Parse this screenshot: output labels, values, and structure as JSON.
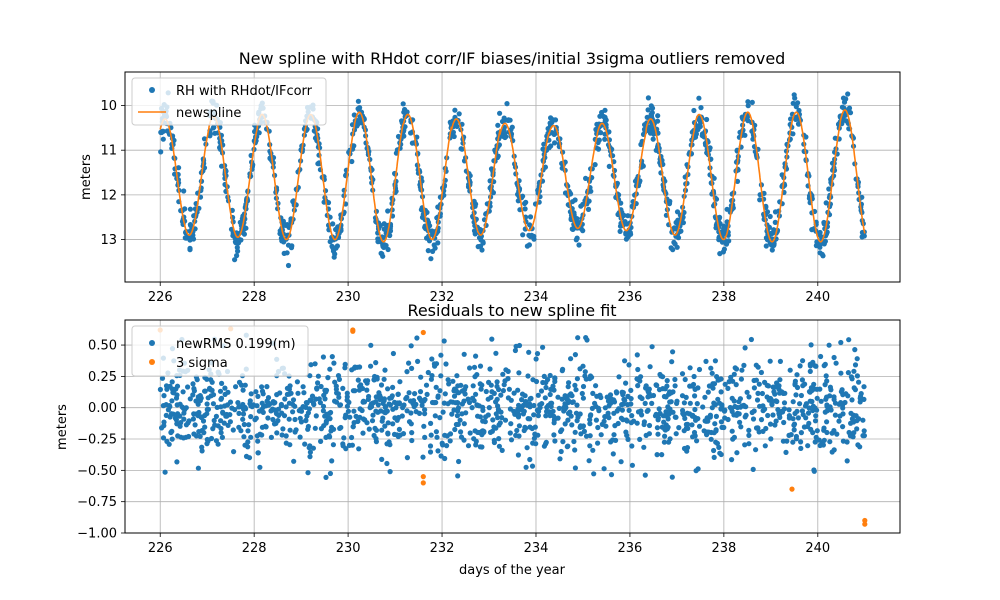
{
  "chart_data": [
    {
      "type": "scatter",
      "title": "New spline with RHdot corr/IF biases/initial 3sigma outliers removed",
      "xlabel": "",
      "ylabel": "meters",
      "xlim": [
        225.25,
        241.75
      ],
      "ylim": [
        13.95,
        9.25
      ],
      "y_inverted": true,
      "xticks": [
        226,
        228,
        230,
        232,
        234,
        236,
        238,
        240
      ],
      "yticks": [
        10,
        11,
        12,
        13
      ],
      "grid": true,
      "legend_position": "top-left",
      "spline": {
        "period_days": 1.034,
        "phase_day": 229.72,
        "mean": 11.6,
        "amplitudes": [
          1.3,
          1.35,
          1.4,
          1.4,
          1.45,
          1.4,
          1.3,
          1.2,
          1.15,
          1.2,
          1.3,
          1.4,
          1.45,
          1.45,
          1.5,
          1.5
        ]
      },
      "series": [
        {
          "name": "RH with RHdot/IFcorr",
          "kind": "points",
          "color": "#1f77b4",
          "x_range": [
            226.0,
            241.0
          ],
          "n_points": 1500
        },
        {
          "name": "newspline",
          "kind": "line",
          "color": "#ff7f0e",
          "x_range": [
            226.0,
            241.0
          ]
        }
      ]
    },
    {
      "type": "scatter",
      "title": "Residuals to new spline fit",
      "xlabel": "days of the year",
      "ylabel": "meters",
      "xlim": [
        225.25,
        241.75
      ],
      "ylim": [
        -1.0,
        0.7
      ],
      "xticks": [
        226,
        228,
        230,
        232,
        234,
        236,
        238,
        240
      ],
      "yticks": [
        -1.0,
        -0.75,
        -0.5,
        -0.25,
        0.0,
        0.25,
        0.5
      ],
      "ytick_labels": [
        "−1.00",
        "−0.75",
        "−0.50",
        "−0.25",
        "0.00",
        "0.25",
        "0.50"
      ],
      "grid": true,
      "legend_position": "top-left",
      "series": [
        {
          "name": "newRMS 0.199(m)",
          "kind": "points",
          "color": "#1f77b4",
          "x_range": [
            226.0,
            241.0
          ],
          "rms": 0.199,
          "n_points": 1500
        },
        {
          "name": "3 sigma",
          "kind": "points",
          "color": "#ff7f0e",
          "x": [
            226.0,
            227.5,
            230.1,
            230.1,
            231.6,
            231.6,
            231.6,
            239.45,
            241.0,
            241.0
          ],
          "y": [
            0.62,
            0.63,
            0.61,
            0.62,
            0.6,
            -0.55,
            -0.6,
            -0.65,
            -0.9,
            -0.93
          ]
        }
      ]
    }
  ]
}
